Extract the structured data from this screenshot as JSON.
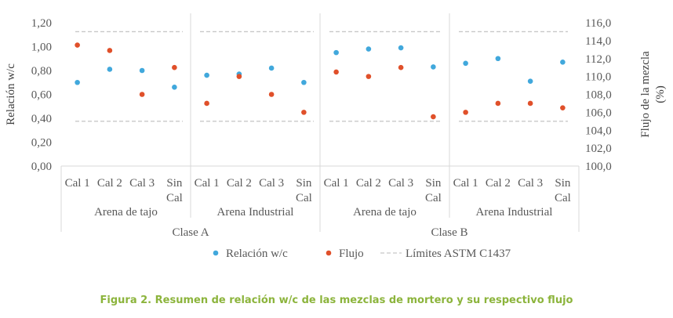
{
  "caption": "Figura 2. Resumen de relación w/c de las mezclas de mortero y su respectivo flujo",
  "chart_data": {
    "type": "scatter",
    "ylabel_left": "Relación w/c",
    "ylabel_right": "Flujo de la mezcla (%)",
    "ylim_left": [
      0,
      1.2
    ],
    "ylim_right": [
      100,
      116
    ],
    "yticks_left": [
      "0,00",
      "0,20",
      "0,40",
      "0,60",
      "0,80",
      "1,00",
      "1,20"
    ],
    "yticks_right": [
      "100,0",
      "102,0",
      "104,0",
      "106,0",
      "108,0",
      "110,0",
      "112,0",
      "114,0",
      "116,0"
    ],
    "categories": [
      {
        "label": "Cal 1",
        "label2": ""
      },
      {
        "label": "Cal 2",
        "label2": ""
      },
      {
        "label": "Cal 3",
        "label2": ""
      },
      {
        "label": "Sin",
        "label2": "Cal"
      },
      {
        "label": "Cal 1",
        "label2": ""
      },
      {
        "label": "Cal 2",
        "label2": ""
      },
      {
        "label": "Cal 3",
        "label2": ""
      },
      {
        "label": "Sin",
        "label2": "Cal"
      },
      {
        "label": "Cal 1",
        "label2": ""
      },
      {
        "label": "Cal 2",
        "label2": ""
      },
      {
        "label": "Cal 3",
        "label2": ""
      },
      {
        "label": "Sin",
        "label2": "Cal"
      },
      {
        "label": "Cal 1",
        "label2": ""
      },
      {
        "label": "Cal 2",
        "label2": ""
      },
      {
        "label": "Cal 3",
        "label2": ""
      },
      {
        "label": "Sin",
        "label2": "Cal"
      }
    ],
    "groups_level2": [
      "Arena de tajo",
      "Arena Industrial",
      "Arena de tajo",
      "Arena Industrial"
    ],
    "groups_level3": [
      "Clase A",
      "Clase B"
    ],
    "series": [
      {
        "name": "Relación w/c",
        "axis": "left",
        "color": "#41a8dc",
        "values": [
          0.7,
          0.81,
          0.8,
          0.66,
          0.76,
          0.77,
          0.82,
          0.7,
          0.95,
          0.98,
          0.99,
          0.83,
          0.86,
          0.9,
          0.71,
          0.87
        ]
      },
      {
        "name": "Flujo",
        "axis": "right",
        "color": "#e0502a",
        "values": [
          113.5,
          112.9,
          108.0,
          111.0,
          107.0,
          110.0,
          108.0,
          106.0,
          110.5,
          110.0,
          111.0,
          105.5,
          106.0,
          107.0,
          107.0,
          106.5
        ]
      }
    ],
    "limits": {
      "name": "Límites ASTM C1437",
      "axis": "right",
      "values": [
        115.0,
        105.0
      ],
      "color": "#c8c8c8"
    }
  }
}
